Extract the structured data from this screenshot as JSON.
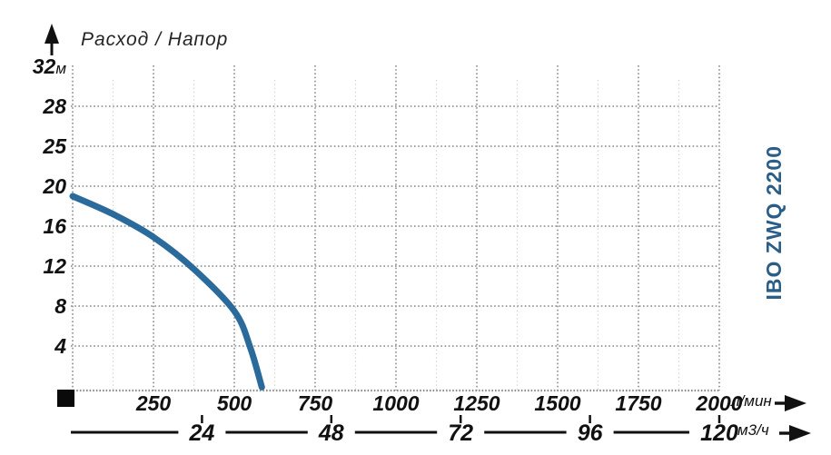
{
  "title": "Расход / Напор",
  "series_label": "IBO ZWQ 2200",
  "units": {
    "x_primary": "л/мин",
    "x_secondary": "м3/ч",
    "y": "м"
  },
  "colors": {
    "curve": "#2b6b9b",
    "series_label_text": "#2a5d87",
    "grid_major": "#a3a3a3",
    "grid_minor": "#cfcfcf",
    "axis_dark": "#8c8c8c",
    "text": "#111111"
  },
  "icons": {
    "y_axis": "up-arrow-icon",
    "x_axis_primary": "right-arrow-icon",
    "x_axis_secondary": "right-arrow-icon",
    "origin": "black-square-marker"
  },
  "chart_data": {
    "type": "line",
    "title": "Расход / Напор",
    "xlabel": "л/мин",
    "ylabel": "м",
    "grid": true,
    "legend_position": "right-vertical",
    "x_axis_primary": {
      "unit": "л/мин",
      "min": 0,
      "max": 2000,
      "ticks": [
        250,
        500,
        750,
        1000,
        1250,
        1500,
        1750,
        2000
      ],
      "minor_step": 125
    },
    "x_axis_secondary": {
      "unit": "м3/ч",
      "min": 0,
      "max": 120,
      "ticks": [
        24,
        48,
        72,
        96,
        120
      ]
    },
    "y_axis": {
      "unit": "м",
      "min": 0,
      "ticks": [
        4,
        8,
        12,
        16,
        20,
        25,
        28,
        32
      ]
    },
    "series": [
      {
        "name": "IBO ZWQ 2200",
        "color": "#2b6b9b",
        "points": [
          [
            0,
            19.0
          ],
          [
            125,
            17.2
          ],
          [
            250,
            14.9
          ],
          [
            375,
            11.7
          ],
          [
            500,
            7.5
          ],
          [
            550,
            3.8
          ],
          [
            585,
            0.3
          ]
        ]
      }
    ]
  }
}
